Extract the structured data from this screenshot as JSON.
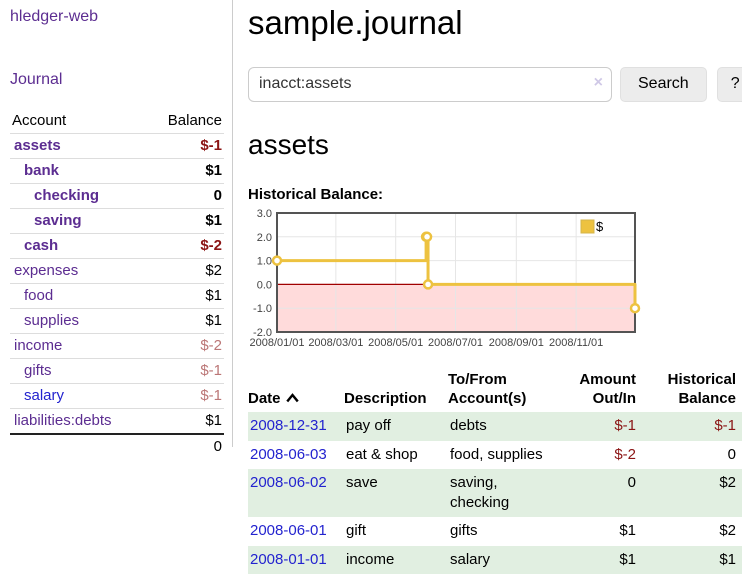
{
  "colors": {
    "link-purple": "#5c2d91",
    "link-blue": "#2323cf",
    "neg-strong": "#8b1414",
    "neg-soft": "#bb7676",
    "stripe-green": "#e1efe1",
    "series-gold": "#edc240",
    "negative-region-pink": "#ffdbdb",
    "zero-line-red": "#a00000",
    "chart-border-gray": "#545454",
    "grid-gray": "#e6e6e6"
  },
  "sidebar": {
    "app_title": "hledger-web",
    "journal_link": "Journal",
    "table": {
      "account_header": "Account",
      "balance_header": "Balance",
      "rows": [
        {
          "account": "assets",
          "balance": "$-1",
          "depth": 0,
          "bold": true,
          "balance_style": "neg-strong",
          "link": "purple"
        },
        {
          "account": "bank",
          "balance": "$1",
          "depth": 1,
          "bold": true,
          "balance_style": "normal",
          "link": "purple"
        },
        {
          "account": "checking",
          "balance": "0",
          "depth": 2,
          "bold": true,
          "balance_style": "normal",
          "link": "purple"
        },
        {
          "account": "saving",
          "balance": "$1",
          "depth": 2,
          "bold": true,
          "balance_style": "normal",
          "link": "purple"
        },
        {
          "account": "cash",
          "balance": "$-2",
          "depth": 1,
          "bold": true,
          "balance_style": "neg-strong",
          "link": "purple"
        },
        {
          "account": "expenses",
          "balance": "$2",
          "depth": 0,
          "bold": false,
          "balance_style": "normal",
          "link": "purple"
        },
        {
          "account": "food",
          "balance": "$1",
          "depth": 1,
          "bold": false,
          "balance_style": "normal",
          "link": "purple"
        },
        {
          "account": "supplies",
          "balance": "$1",
          "depth": 1,
          "bold": false,
          "balance_style": "normal",
          "link": "purple"
        },
        {
          "account": "income",
          "balance": "$-2",
          "depth": 0,
          "bold": false,
          "balance_style": "neg-soft",
          "link": "purple"
        },
        {
          "account": "gifts",
          "balance": "$-1",
          "depth": 1,
          "bold": false,
          "balance_style": "neg-soft",
          "link": "purple"
        },
        {
          "account": "salary",
          "balance": "$-1",
          "depth": 1,
          "bold": false,
          "balance_style": "neg-soft",
          "link": "blue"
        },
        {
          "account": "liabilities:debts",
          "balance": "$1",
          "depth": 0,
          "bold": false,
          "balance_style": "normal",
          "link": "purple"
        }
      ],
      "total": "0"
    }
  },
  "main": {
    "title": "sample.journal",
    "search": {
      "value": "inacct:assets",
      "clear_icon": "×",
      "search_button": "Search",
      "help_button": "?"
    },
    "account_heading": "assets",
    "chart_label": "Historical Balance:"
  },
  "chart_data": {
    "type": "line",
    "step": true,
    "title": "Historical Balance",
    "legend": [
      {
        "label": "$",
        "color": "#edc240"
      }
    ],
    "legend_position": "top-right",
    "series": [
      {
        "name": "$",
        "points": [
          {
            "date": "2008-01-01",
            "value": 1
          },
          {
            "date": "2008-06-01",
            "value": 2
          },
          {
            "date": "2008-06-02",
            "value": 2
          },
          {
            "date": "2008-06-03",
            "value": 0
          },
          {
            "date": "2008-12-31",
            "value": -1
          }
        ],
        "x_days": [
          0,
          152,
          153,
          154,
          365
        ]
      }
    ],
    "x_tick_labels": [
      "2008/01/01",
      "2008/03/01",
      "2008/05/01",
      "2008/07/01",
      "2008/09/01",
      "2008/11/01"
    ],
    "x_tick_days": [
      0,
      60,
      121,
      182,
      244,
      305
    ],
    "x_range_days": 365,
    "y_ticks": [
      "3.0",
      "2.0",
      "1.0",
      "0.0",
      "-1.0",
      "-2.0"
    ],
    "ylim": [
      -2,
      3
    ],
    "grid": true,
    "negative_region_shaded": true
  },
  "register": {
    "headers": [
      "Date",
      "Description",
      "To/From Account(s)",
      "Amount Out/In",
      "Historical Balance"
    ],
    "sort_icon": "chevron-up",
    "rows": [
      {
        "date": "2008-12-31",
        "description": "pay off",
        "accounts": "debts",
        "amount": "$-1",
        "balance": "$-1",
        "amount_neg": true,
        "balance_neg": true
      },
      {
        "date": "2008-06-03",
        "description": "eat & shop",
        "accounts": "food, supplies",
        "amount": "$-2",
        "balance": "0",
        "amount_neg": true,
        "balance_neg": false
      },
      {
        "date": "2008-06-02",
        "description": "save",
        "accounts": "saving, checking",
        "amount": "0",
        "balance": "$2",
        "amount_neg": false,
        "balance_neg": false
      },
      {
        "date": "2008-06-01",
        "description": "gift",
        "accounts": "gifts",
        "amount": "$1",
        "balance": "$2",
        "amount_neg": false,
        "balance_neg": false
      },
      {
        "date": "2008-01-01",
        "description": "income",
        "accounts": "salary",
        "amount": "$1",
        "balance": "$1",
        "amount_neg": false,
        "balance_neg": false
      }
    ]
  }
}
